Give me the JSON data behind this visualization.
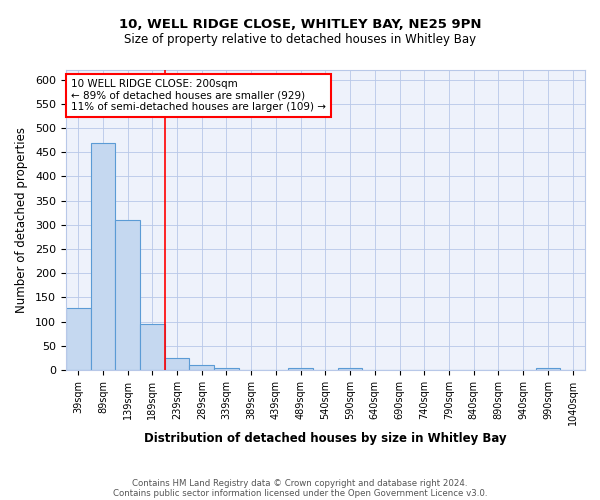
{
  "title1": "10, WELL RIDGE CLOSE, WHITLEY BAY, NE25 9PN",
  "title2": "Size of property relative to detached houses in Whitley Bay",
  "xlabel": "Distribution of detached houses by size in Whitley Bay",
  "ylabel": "Number of detached properties",
  "footer1": "Contains HM Land Registry data © Crown copyright and database right 2024.",
  "footer2": "Contains public sector information licensed under the Open Government Licence v3.0.",
  "annotation_line1": "10 WELL RIDGE CLOSE: 200sqm",
  "annotation_line2": "← 89% of detached houses are smaller (929)",
  "annotation_line3": "11% of semi-detached houses are larger (109) →",
  "bar_labels": [
    "39sqm",
    "89sqm",
    "139sqm",
    "189sqm",
    "239sqm",
    "289sqm",
    "339sqm",
    "389sqm",
    "439sqm",
    "489sqm",
    "540sqm",
    "590sqm",
    "640sqm",
    "690sqm",
    "740sqm",
    "790sqm",
    "840sqm",
    "890sqm",
    "940sqm",
    "990sqm",
    "1040sqm"
  ],
  "bar_values": [
    128,
    470,
    310,
    95,
    25,
    10,
    5,
    0,
    0,
    5,
    0,
    5,
    0,
    0,
    0,
    0,
    0,
    0,
    0,
    5,
    0
  ],
  "bar_color": "#c5d8f0",
  "bar_edge_color": "#5b9bd5",
  "red_line_x": 3.5,
  "ylim": [
    0,
    620
  ],
  "yticks": [
    0,
    50,
    100,
    150,
    200,
    250,
    300,
    350,
    400,
    450,
    500,
    550,
    600
  ],
  "annotation_box_color": "white",
  "annotation_box_edge": "red",
  "bg_color": "#eef2fb"
}
